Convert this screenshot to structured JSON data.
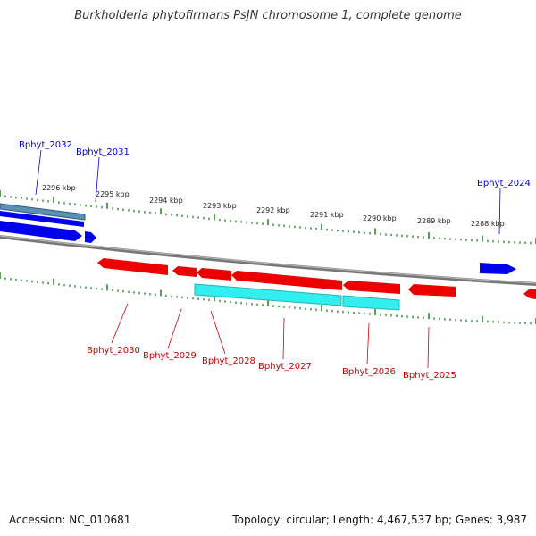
{
  "title": "Burkholderia phytofirmans PsJN chromosome 1, complete genome",
  "footer": {
    "accession": "Accession: NC_010681",
    "summary": "Topology: circular; Length: 4,467,537 bp; Genes: 3,987"
  },
  "colors": {
    "forward_gene": "#0000ee",
    "reverse_gene": "#ee0000",
    "forward_label": "#0000cc",
    "reverse_label": "#cc0000",
    "teal_feature": "#5b8fb4",
    "cyan_feature": "#33eeee",
    "backbone": "#888888",
    "ticks": "#2a8a2a"
  },
  "kbp_labels": [
    "2296 kbp",
    "2295 kbp",
    "2294 kbp",
    "2293 kbp",
    "2292 kbp",
    "2291 kbp",
    "2290 kbp",
    "2289 kbp",
    "2288 kbp"
  ],
  "genes_forward": [
    "Bphyt_2032",
    "Bphyt_2031",
    "Bphyt_2024"
  ],
  "genes_reverse": [
    "Bphyt_2030",
    "Bphyt_2029",
    "Bphyt_2028",
    "Bphyt_2027",
    "Bphyt_2026",
    "Bphyt_2025"
  ]
}
